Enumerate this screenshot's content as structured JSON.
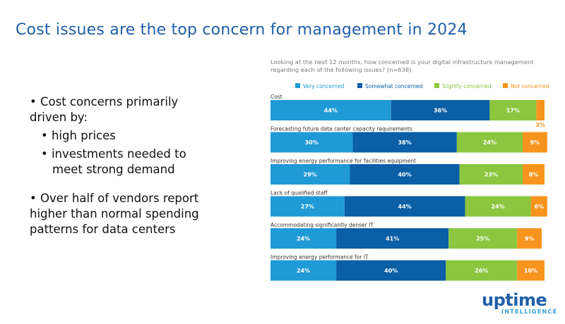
{
  "slide": {
    "title": "Cost issues are the top concern for management in 2024",
    "bullets": {
      "b1_line1": "• Cost concerns primarily",
      "b1_line2": "driven by:",
      "sub1": "•  high prices",
      "sub2_line1": "•  investments needed to",
      "sub2_line2": "meet strong demand",
      "b2_line1": "• Over half of vendors report",
      "b2_line2": "higher than normal spending",
      "b2_line3": "patterns for data centers"
    }
  },
  "logo": {
    "name": "uptime",
    "sub": "INTELLIGENCE"
  },
  "colors": {
    "very": "#1f9ad6",
    "somewhat": "#0b5fa5",
    "slightly": "#8cc63f",
    "not": "#f7941d"
  },
  "chart_data": {
    "type": "bar",
    "orientation": "horizontal-stacked-100",
    "title_line1": "Looking at the next 12 months, how concerned is your digital infrastructure management",
    "title_line2": "regarding each of the following issues? (n=638)",
    "legend_position": "top",
    "series": [
      {
        "name": "Very concerned",
        "color": "#1f9ad6"
      },
      {
        "name": "Somewhat concerned",
        "color": "#0b5fa5"
      },
      {
        "name": "Slightly concerned",
        "color": "#8cc63f"
      },
      {
        "name": "Not concerned",
        "color": "#f7941d"
      }
    ],
    "categories": [
      {
        "label": "Cost",
        "values": [
          44,
          36,
          17,
          3
        ]
      },
      {
        "label": "Forecasting future data center capacity requirements",
        "values": [
          30,
          38,
          24,
          9
        ]
      },
      {
        "label": "Improving energy performance for facilities equipment",
        "values": [
          29,
          40,
          23,
          8
        ]
      },
      {
        "label": "Lack of qualified staff",
        "values": [
          27,
          44,
          24,
          6
        ]
      },
      {
        "label": "Accommodating significantly denser IT",
        "values": [
          24,
          41,
          25,
          9
        ]
      },
      {
        "label": "Improving energy performance for IT",
        "values": [
          24,
          40,
          26,
          10
        ]
      }
    ],
    "value_suffix": "%"
  }
}
